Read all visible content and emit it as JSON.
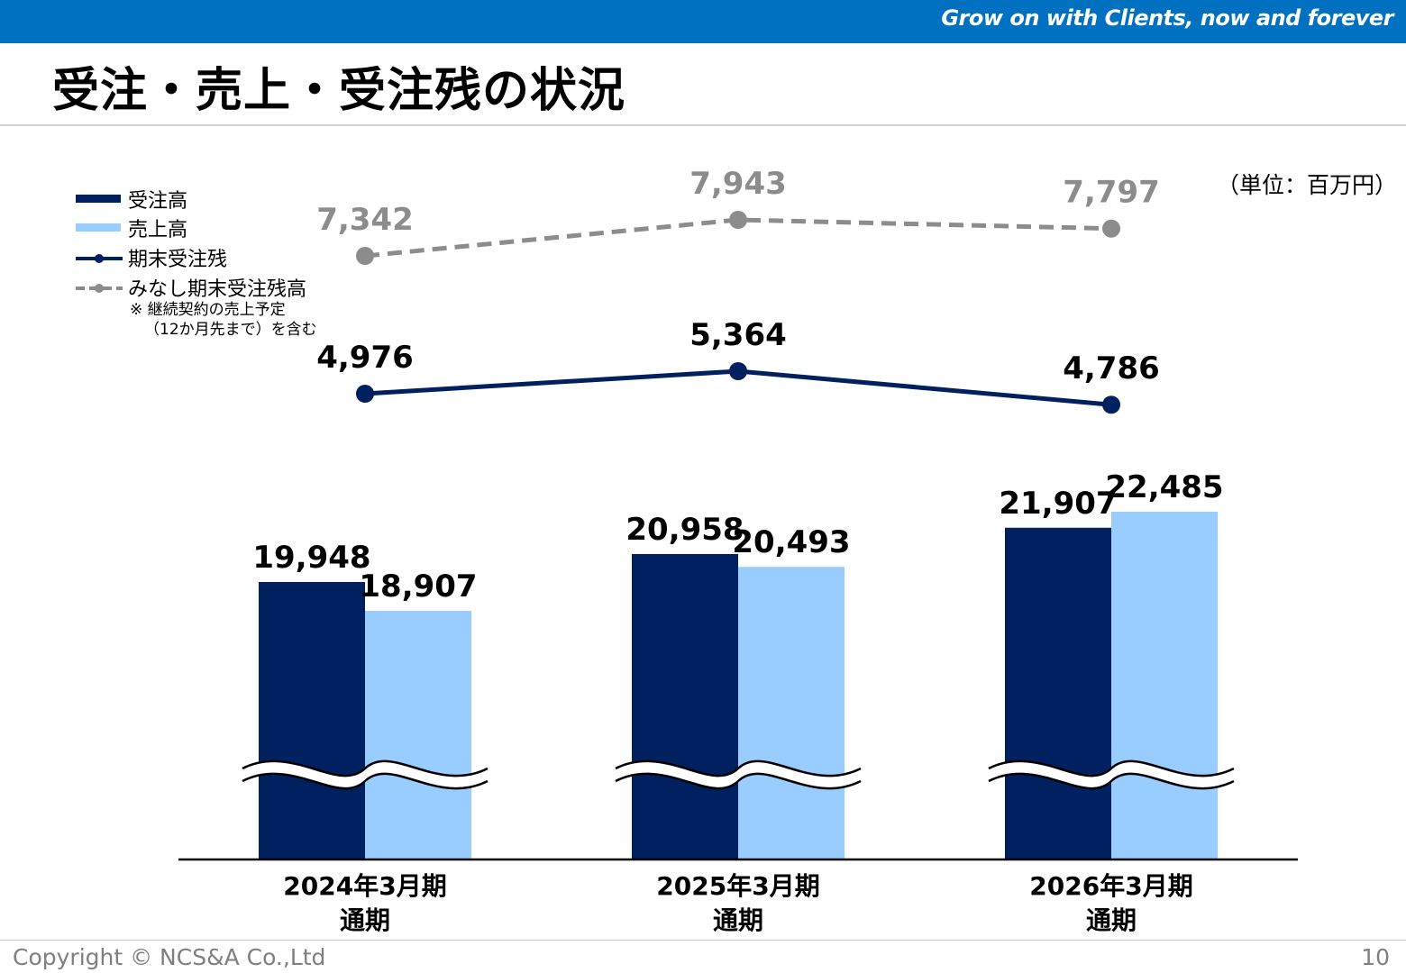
{
  "header": {
    "tagline": "Grow on with Clients, now and forever",
    "color": "#0070c0"
  },
  "title": "受注・売上・受注残の状況",
  "unit": "（単位：百万円）",
  "legend": {
    "orders": "受注高",
    "sales": "売上高",
    "backlog": "期末受注残",
    "deemed_backlog": "みなし期末受注残高",
    "note_line1": "※ 継続契約の売上予定",
    "note_line2": "（12か月先まで）を含む"
  },
  "colors": {
    "orders": "#002060",
    "sales": "#99ccff",
    "backlog": "#002060",
    "deemed_backlog": "#8c8c8c"
  },
  "chart_data": {
    "type": "bar",
    "axis_break": true,
    "categories": [
      [
        "2024年3月期",
        "通期"
      ],
      [
        "2025年3月期",
        "通期"
      ],
      [
        "2026年3月期",
        "通期"
      ]
    ],
    "bar_series": [
      {
        "name": "受注高",
        "values": [
          19948,
          20958,
          21907
        ],
        "labels": [
          "19,948",
          "20,958",
          "21,907"
        ]
      },
      {
        "name": "売上高",
        "values": [
          18907,
          20493,
          22485
        ],
        "labels": [
          "18,907",
          "20,493",
          "22,485"
        ]
      }
    ],
    "line_series": [
      {
        "name": "期末受注残",
        "style": "solid",
        "values": [
          4976,
          5364,
          4786
        ],
        "labels": [
          "4,976",
          "5,364",
          "4,786"
        ]
      },
      {
        "name": "みなし期末受注残高",
        "style": "dashed",
        "values": [
          7342,
          7943,
          7797
        ],
        "labels": [
          "7,342",
          "7,943",
          "7,797"
        ]
      }
    ]
  },
  "footer": {
    "copyright": "Copyright © NCS&A Co.,Ltd",
    "page": "10"
  }
}
